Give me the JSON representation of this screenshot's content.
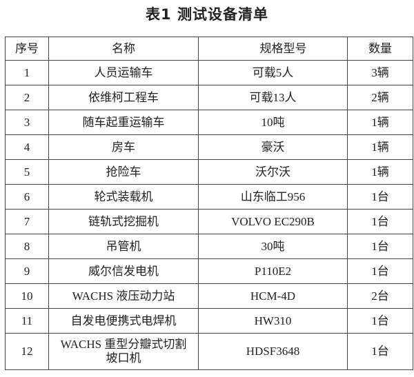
{
  "title": "表1  测试设备清单",
  "table": {
    "headers": [
      "序号",
      "名称",
      "规格型号",
      "数量"
    ],
    "rows": [
      [
        "1",
        "人员运输车",
        "可载5人",
        "3辆"
      ],
      [
        "2",
        "依维柯工程车",
        "可载13人",
        "2辆"
      ],
      [
        "3",
        "随车起重运输车",
        "10吨",
        "1辆"
      ],
      [
        "4",
        "房车",
        "豪沃",
        "1辆"
      ],
      [
        "5",
        "抢险车",
        "沃尔沃",
        "1辆"
      ],
      [
        "6",
        "轮式装载机",
        "山东临工956",
        "1台"
      ],
      [
        "7",
        "链轨式挖掘机",
        "VOLVO  EC290B",
        "1台"
      ],
      [
        "8",
        "吊管机",
        "30吨",
        "1台"
      ],
      [
        "9",
        "威尔信发电机",
        "P110E2",
        "1台"
      ],
      [
        "10",
        "WACHS 液压动力站",
        "HCM-4D",
        "2台"
      ],
      [
        "11",
        "自发电便携式电焊机",
        "HW310",
        "1台"
      ],
      [
        "12",
        "WACHS 重型分瓣式切割坡口机",
        "HDSF3648",
        "1台"
      ]
    ]
  }
}
